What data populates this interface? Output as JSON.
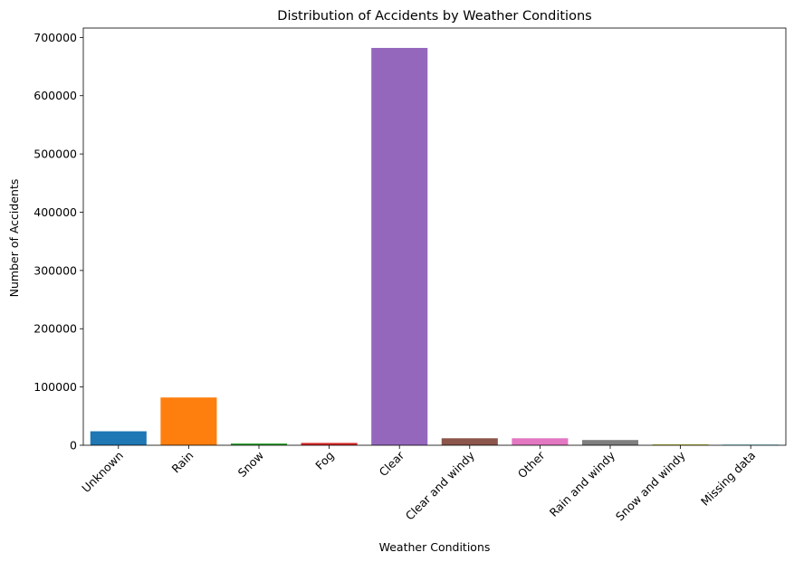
{
  "chart_data": {
    "type": "bar",
    "title": "Distribution of Accidents by Weather Conditions",
    "xlabel": "Weather Conditions",
    "ylabel": "Number of Accidents",
    "categories": [
      "Unknown",
      "Rain",
      "Snow",
      "Fog",
      "Clear",
      "Clear and windy",
      "Other",
      "Rain and windy",
      "Snow and windy",
      "Missing data"
    ],
    "values": [
      24000,
      82000,
      3000,
      4000,
      682000,
      12000,
      12000,
      9000,
      1500,
      1000
    ],
    "colors": [
      "#1f77b4",
      "#ff7f0e",
      "#2ca02c",
      "#d62728",
      "#9467bd",
      "#8c564b",
      "#e377c2",
      "#7f7f7f",
      "#bcbd22",
      "#17becf"
    ],
    "ylim": [
      0,
      716100
    ],
    "yticks": [
      0,
      100000,
      200000,
      300000,
      400000,
      500000,
      600000,
      700000
    ],
    "ytick_labels": [
      "0",
      "100000",
      "200000",
      "300000",
      "400000",
      "500000",
      "600000",
      "700000"
    ],
    "grid": false,
    "legend": "none"
  }
}
